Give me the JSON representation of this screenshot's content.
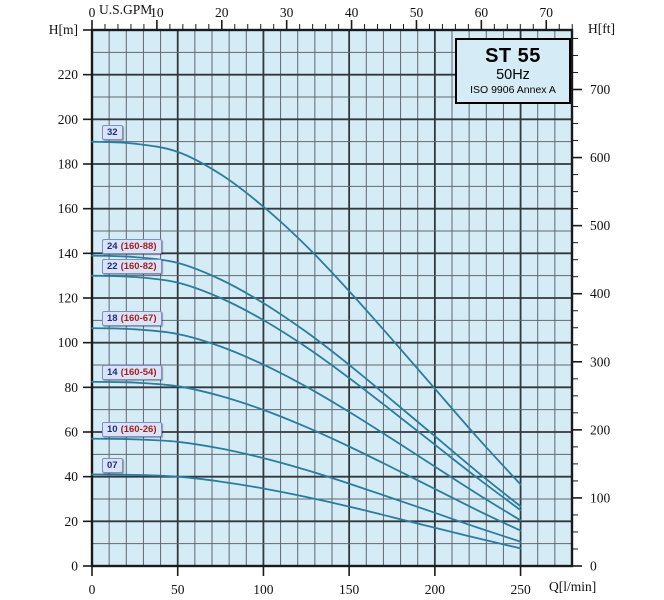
{
  "title_box": {
    "model": "ST 55",
    "frequency": "50Hz",
    "standard": "ISO 9906 Annex A"
  },
  "chart_data": {
    "type": "line",
    "title": "ST 55 50Hz pump performance curves (ISO 9906 Annex A)",
    "xlabel": "Q[l/min]",
    "ylabel": "H[m]",
    "xlim": [
      0,
      280
    ],
    "ylim": [
      0,
      240
    ],
    "grid": "on",
    "x_minor_step": 10,
    "y_minor_step": 10,
    "x_major_step": 50,
    "y_major_step": 20,
    "flow_lmin": [
      0,
      25,
      50,
      75,
      100,
      125,
      150,
      175,
      200,
      225,
      250
    ],
    "series": [
      {
        "name": "32",
        "label": "32",
        "sublabel": "",
        "shutoff_head_m": 190,
        "heads_m": [
          190.0,
          189.1,
          185.4,
          175.4,
          160.9,
          143.3,
          123.1,
          101.5,
          79.4,
          57.4,
          36.5
        ]
      },
      {
        "name": "24",
        "label": "24",
        "sublabel": "(160-88)",
        "shutoff_head_m": 139,
        "heads_m": [
          139.0,
          138.3,
          135.7,
          128.3,
          117.7,
          104.8,
          90.1,
          74.2,
          58.1,
          42.0,
          26.7
        ]
      },
      {
        "name": "22",
        "label": "22",
        "sublabel": "(160-82)",
        "shutoff_head_m": 130,
        "heads_m": [
          130.0,
          129.4,
          126.9,
          120.0,
          110.1,
          98.0,
          84.2,
          69.4,
          54.3,
          39.3,
          25.0
        ]
      },
      {
        "name": "18",
        "label": "18",
        "sublabel": "(160-67)",
        "shutoff_head_m": 106.5,
        "heads_m": [
          106.5,
          106.0,
          103.9,
          98.3,
          90.2,
          80.3,
          69.0,
          56.9,
          44.5,
          32.2,
          20.4
        ]
      },
      {
        "name": "14",
        "label": "14",
        "sublabel": "(160-54)",
        "shutoff_head_m": 82.5,
        "heads_m": [
          82.5,
          82.1,
          80.5,
          76.1,
          69.9,
          62.2,
          53.5,
          44.1,
          34.5,
          24.9,
          15.8
        ]
      },
      {
        "name": "10",
        "label": "10",
        "sublabel": "(160-26)",
        "shutoff_head_m": 57,
        "heads_m": [
          57.0,
          56.7,
          55.6,
          52.6,
          48.3,
          43.0,
          36.9,
          30.4,
          23.8,
          17.2,
          10.9
        ]
      },
      {
        "name": "07",
        "label": "07",
        "sublabel": "",
        "shutoff_head_m": 41,
        "heads_m": [
          41.0,
          40.8,
          40.0,
          37.8,
          34.7,
          30.9,
          26.6,
          21.9,
          17.1,
          12.4,
          7.9
        ]
      }
    ],
    "axes": {
      "left": {
        "unit": "H[m]",
        "tick_labels": [
          0,
          20,
          40,
          60,
          80,
          100,
          120,
          140,
          160,
          180,
          200,
          220
        ],
        "max_tick": 240
      },
      "right": {
        "unit": "H[ft]",
        "tick_labels": [
          0,
          100,
          200,
          300,
          400,
          500,
          600,
          700
        ],
        "minor_step_ft": 25,
        "max_minor_ft": 775
      },
      "top": {
        "unit": "U.S.GPM",
        "tick_labels": [
          0,
          10,
          20,
          30,
          40,
          50,
          60,
          70
        ],
        "minor_step_gpm": 2,
        "max_minor_gpm": 74
      },
      "bottom": {
        "unit": "Q[l/min]",
        "tick_labels": [
          0,
          50,
          100,
          150,
          200,
          250
        ]
      }
    },
    "legend_position": "labels-on-curves"
  },
  "colors": {
    "plot_background": "#d5ecf7",
    "grid_minor": "#5f686e",
    "grid_major": "#31383c",
    "frame": "#1a1a1a",
    "curve": "#2a7d9e",
    "label_box_bg": "#dbe3f6",
    "label_box_border": "#7c8fc9",
    "label_number": "#1b2f80",
    "label_suffix": "#9e1f1f"
  }
}
